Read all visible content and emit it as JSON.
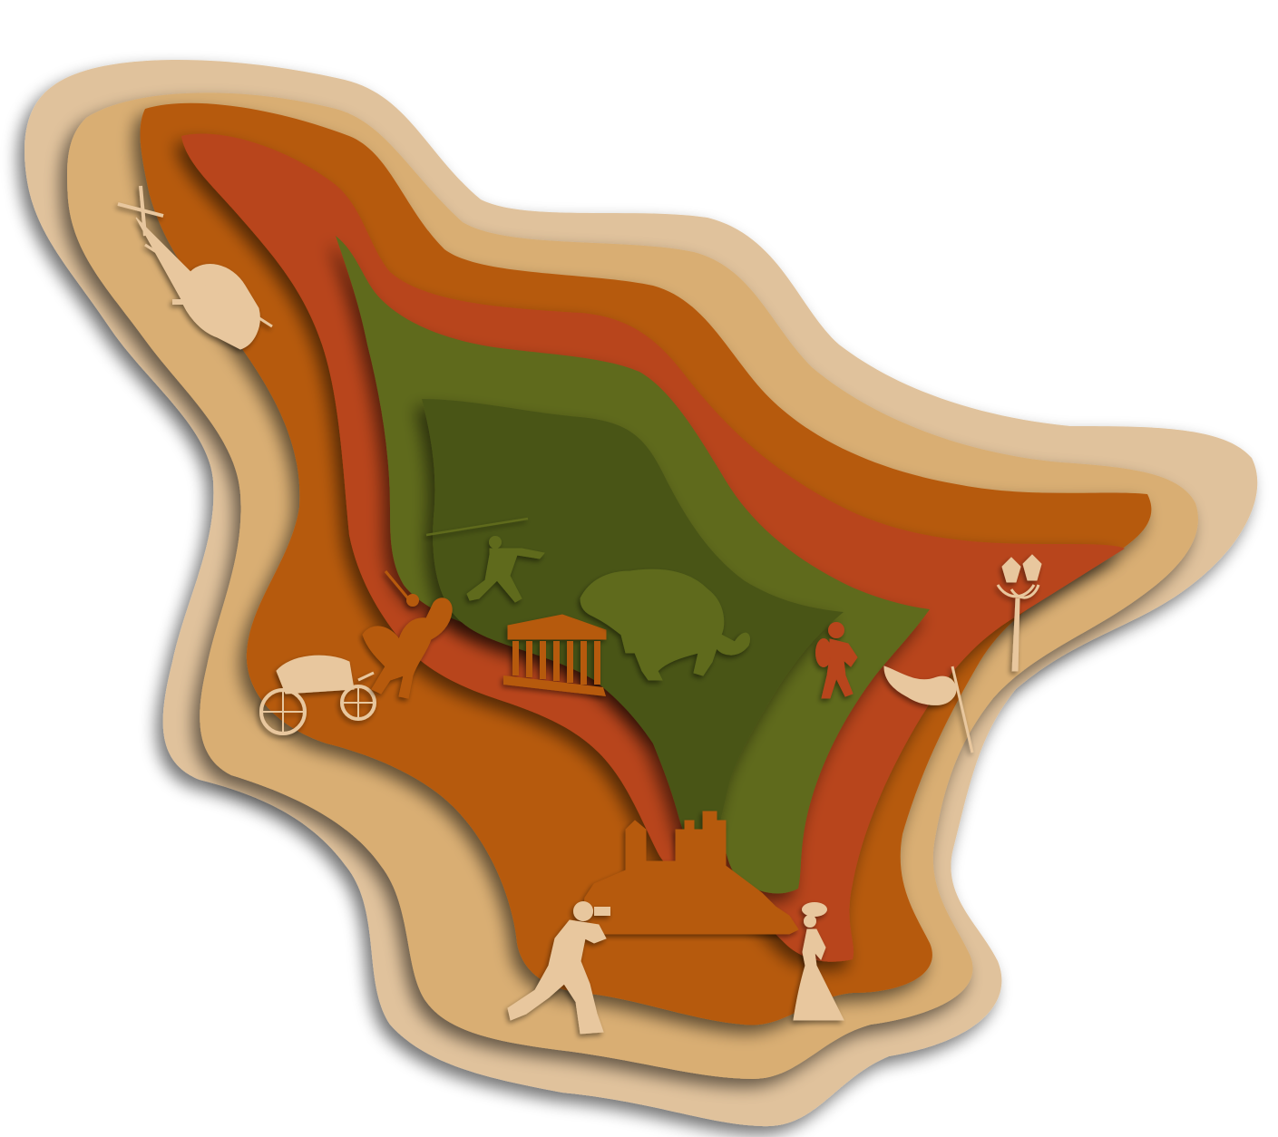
{
  "artwork": {
    "style": "layered paper-cut map",
    "colors": {
      "outer_layer": "#E0C29C",
      "tan_layer": "#D9AE73",
      "orange_layer": "#B65A0B",
      "rust_layer": "#B8441C",
      "green_layer": "#5E6A1C",
      "dark_green_core": "#4A5518",
      "cream_silhouette": "#E8C79E",
      "orange_silhouette": "#B65A0B",
      "green_silhouette": "#5E6A1C",
      "rust_silhouette": "#B8441C"
    },
    "silhouettes": [
      {
        "id": "helicopter",
        "icon": "helicopter-icon"
      },
      {
        "id": "carriage",
        "icon": "carriage-icon"
      },
      {
        "id": "knight-on-horse",
        "icon": "rearing-horse-rider-icon"
      },
      {
        "id": "javelin-thrower",
        "icon": "javelin-thrower-icon"
      },
      {
        "id": "greek-temple",
        "icon": "temple-icon"
      },
      {
        "id": "mammoth",
        "icon": "mammoth-icon"
      },
      {
        "id": "roman-warrior",
        "icon": "warrior-with-shield-icon"
      },
      {
        "id": "street-lamp",
        "icon": "street-lamp-icon"
      },
      {
        "id": "flag",
        "icon": "flag-icon"
      },
      {
        "id": "castle",
        "icon": "castle-icon"
      },
      {
        "id": "photographer",
        "icon": "photographer-icon"
      },
      {
        "id": "lady-in-gown",
        "icon": "lady-gown-icon"
      }
    ]
  }
}
